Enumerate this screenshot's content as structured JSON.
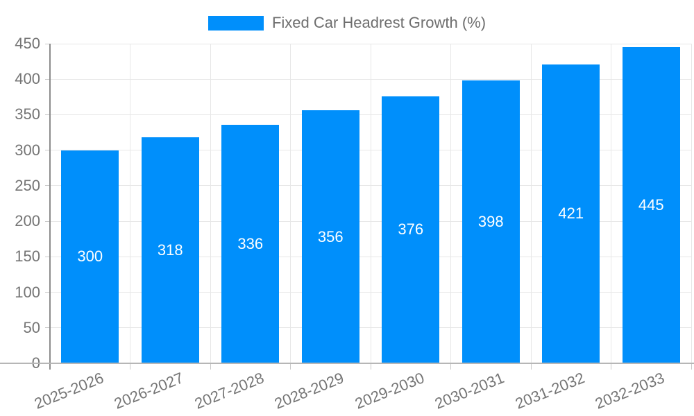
{
  "legend": {
    "label": "Fixed Car Headrest Growth (%)"
  },
  "chart_data": {
    "type": "bar",
    "title": "Fixed Car Headrest Growth (%)",
    "xlabel": "",
    "ylabel": "",
    "categories": [
      "2025-2026",
      "2026-2027",
      "2027-2028",
      "2028-2029",
      "2029-2030",
      "2030-2031",
      "2031-2032",
      "2032-2033"
    ],
    "values": [
      300,
      318,
      336,
      356,
      376,
      398,
      421,
      445
    ],
    "series": [
      {
        "name": "Fixed Car Headrest Growth (%)",
        "values": [
          300,
          318,
          336,
          356,
          376,
          398,
          421,
          445
        ]
      }
    ],
    "ylim": [
      0,
      450
    ],
    "yticks": [
      0,
      50,
      100,
      150,
      200,
      250,
      300,
      350,
      400,
      450
    ],
    "grid": true,
    "legend_position": "top",
    "value_labels": "inside-center"
  },
  "colors": {
    "bar": "#008FFB",
    "grid": "#e7e7e7",
    "x_axis_line": "#b6b6b6",
    "y_axis_line": "#8c8c8c",
    "tick": "#c9c9c9",
    "axis_text": "#757575",
    "legend_text": "#6e6e6e",
    "value_text": "#ffffff",
    "background": "#ffffff"
  }
}
